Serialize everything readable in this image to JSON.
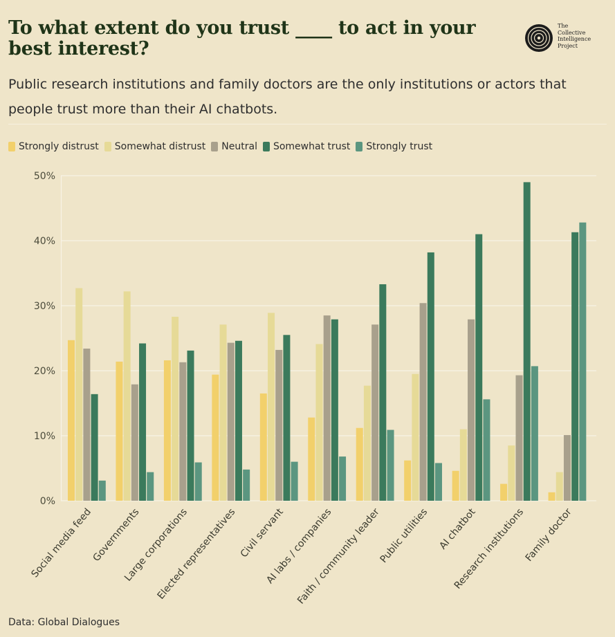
{
  "header": {
    "title": "To what extent do you trust ____ to act in your best interest?",
    "subtitle": "Public research institutions and family doctors are the only institutions or actors that people trust more than their AI chatbots."
  },
  "logo": {
    "line1": "The",
    "line2": "Collective",
    "line3": "Intelligence",
    "line4": "Project"
  },
  "footer": {
    "source": "Data: Global Dialogues"
  },
  "colors": {
    "background": "#efe5c9",
    "gridline": "#f8f3e6",
    "strongly_distrust": "#f2d06b",
    "somewhat_distrust": "#e6da97",
    "neutral": "#a8a08c",
    "somewhat_trust": "#3b7a5c",
    "strongly_trust": "#5b9680"
  },
  "chart_data": {
    "type": "bar",
    "ylim": [
      0,
      50
    ],
    "yticks": [
      "0%",
      "10%",
      "20%",
      "30%",
      "40%",
      "50%"
    ],
    "grid": true,
    "legend_position": "top-left",
    "categories": [
      "Social media feed",
      "Governments",
      "Large corporations",
      "Elected representatives",
      "Civil servant",
      "AI labs / companies",
      "Faith / community leader",
      "Public utilities",
      "AI chatbot",
      "Research institutions",
      "Family doctor"
    ],
    "series": [
      {
        "name": "Strongly distrust",
        "color_key": "strongly_distrust",
        "values": [
          24.7,
          21.4,
          21.6,
          19.4,
          16.5,
          12.8,
          11.2,
          6.2,
          4.6,
          2.6,
          1.3
        ]
      },
      {
        "name": "Somewhat distrust",
        "color_key": "somewhat_distrust",
        "values": [
          32.7,
          32.2,
          28.3,
          27.1,
          28.9,
          24.1,
          17.7,
          19.5,
          11.0,
          8.5,
          4.4
        ]
      },
      {
        "name": "Neutral",
        "color_key": "neutral",
        "values": [
          23.4,
          17.9,
          21.3,
          24.3,
          23.2,
          28.5,
          27.1,
          30.4,
          27.9,
          19.3,
          10.1
        ]
      },
      {
        "name": "Somewhat trust",
        "color_key": "somewhat_trust",
        "values": [
          16.4,
          24.2,
          23.1,
          24.6,
          25.5,
          27.9,
          33.3,
          38.2,
          41.0,
          49.0,
          41.3
        ]
      },
      {
        "name": "Strongly trust",
        "color_key": "strongly_trust",
        "values": [
          3.1,
          4.4,
          5.9,
          4.8,
          6.0,
          6.8,
          10.9,
          5.8,
          15.6,
          20.7,
          42.8
        ]
      }
    ]
  }
}
